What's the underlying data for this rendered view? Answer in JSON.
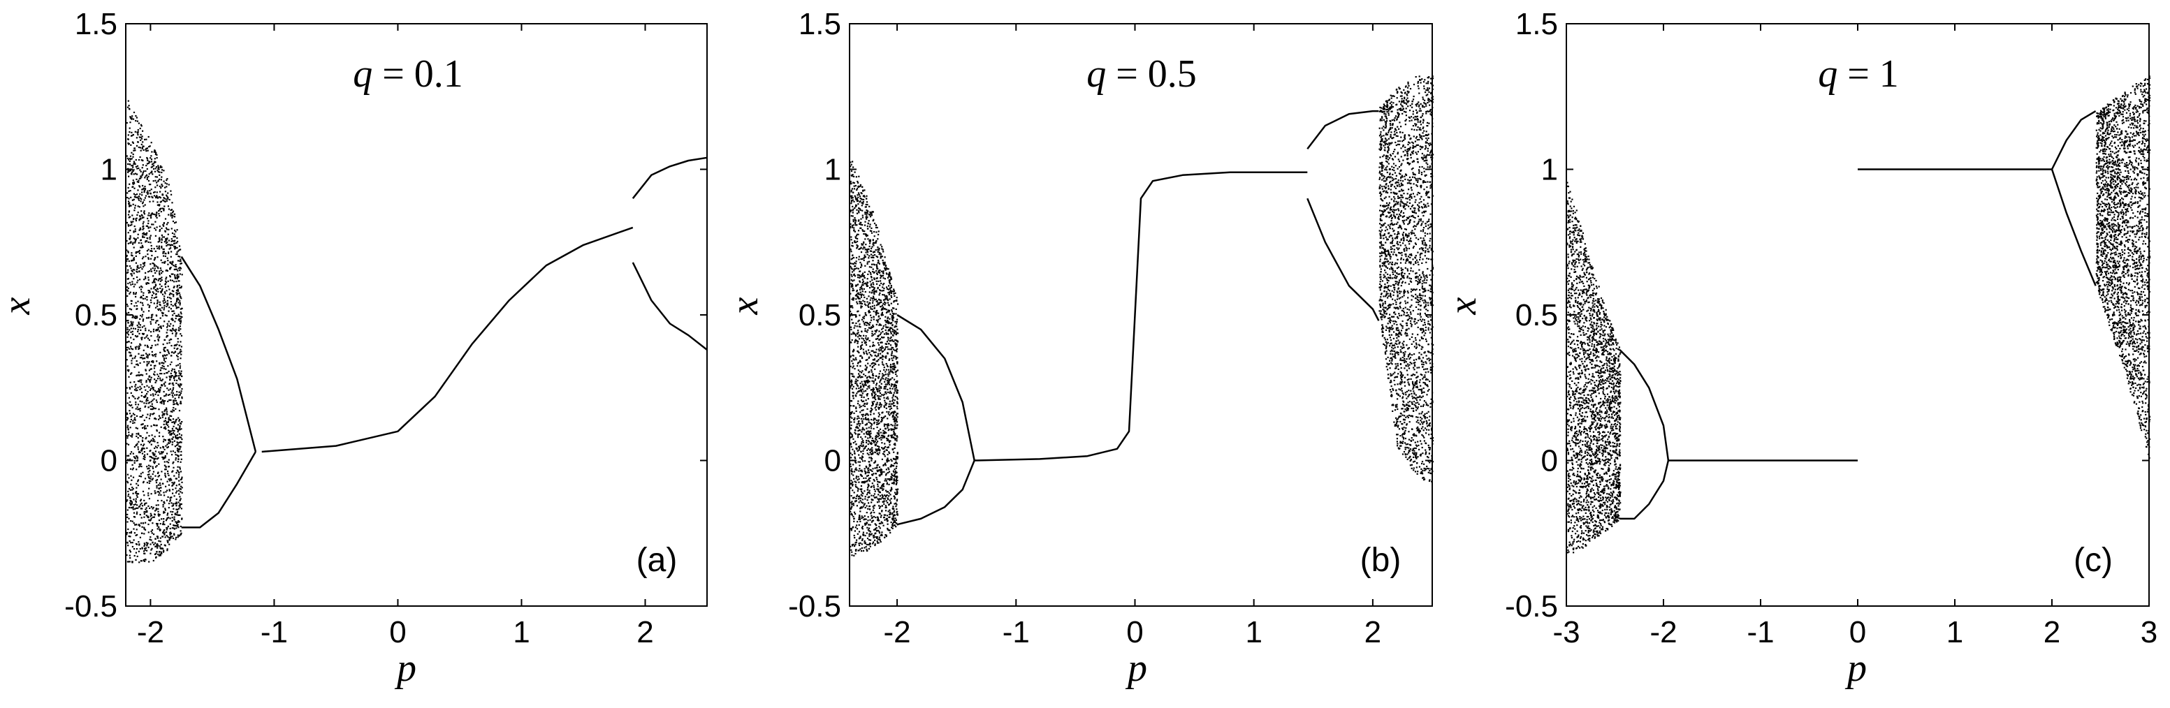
{
  "figure": {
    "panels": [
      {
        "id": "a",
        "label": "(a)",
        "annotation_var": "q",
        "annotation_eq": " = 0.1",
        "xlabel": "p",
        "ylabel": "x"
      },
      {
        "id": "b",
        "label": "(b)",
        "annotation_var": "q",
        "annotation_eq": " = 0.5",
        "xlabel": "p",
        "ylabel": "x"
      },
      {
        "id": "c",
        "label": "(c)",
        "annotation_var": "q",
        "annotation_eq": " = 1",
        "xlabel": "p",
        "ylabel": "x"
      }
    ]
  },
  "chart_data": [
    {
      "type": "scatter",
      "title": "",
      "annotation": "q = 0.1",
      "panel_label": "(a)",
      "xlabel": "p",
      "ylabel": "x",
      "xlim": [
        -2.2,
        2.5
      ],
      "ylim": [
        -0.5,
        1.5
      ],
      "xticks": [
        -2,
        -1,
        0,
        1,
        2
      ],
      "xtick_labels": [
        "-2",
        "-1",
        "0",
        "1",
        "2"
      ],
      "yticks": [
        -0.5,
        0,
        0.5,
        1,
        1.5
      ],
      "ytick_labels": [
        "-0.5",
        "0",
        "0.5",
        "1",
        "1.5"
      ],
      "grid": false,
      "color": "#000000",
      "series": [
        {
          "kind": "chaotic_band",
          "x_range": [
            -2.2,
            -1.75
          ],
          "x": [
            -2.2,
            -2.0,
            -1.85,
            -1.75
          ],
          "y_min": [
            -0.35,
            -0.35,
            -0.3,
            -0.25
          ],
          "y_max": [
            1.25,
            1.1,
            0.95,
            0.7
          ]
        },
        {
          "kind": "curve",
          "x": [
            -1.75,
            -1.6,
            -1.45,
            -1.3,
            -1.15
          ],
          "y": [
            0.7,
            0.6,
            0.45,
            0.28,
            0.03
          ]
        },
        {
          "kind": "curve",
          "x": [
            -1.75,
            -1.6,
            -1.45,
            -1.3,
            -1.15
          ],
          "y": [
            -0.23,
            -0.23,
            -0.18,
            -0.08,
            0.03
          ]
        },
        {
          "kind": "curve",
          "x": [
            -1.1,
            -0.5,
            0.0,
            0.3,
            0.6,
            0.9,
            1.2,
            1.5,
            1.9
          ],
          "y": [
            0.03,
            0.05,
            0.1,
            0.22,
            0.4,
            0.55,
            0.67,
            0.74,
            0.8
          ]
        },
        {
          "kind": "curve",
          "x": [
            1.9,
            2.05,
            2.2,
            2.35,
            2.5
          ],
          "y": [
            0.9,
            0.98,
            1.01,
            1.03,
            1.04
          ]
        },
        {
          "kind": "curve",
          "x": [
            1.9,
            2.05,
            2.2,
            2.35,
            2.5
          ],
          "y": [
            0.68,
            0.55,
            0.47,
            0.43,
            0.38
          ]
        }
      ]
    },
    {
      "type": "scatter",
      "title": "",
      "annotation": "q = 0.5",
      "panel_label": "(b)",
      "xlabel": "p",
      "ylabel": "x",
      "xlim": [
        -2.4,
        2.5
      ],
      "ylim": [
        -0.5,
        1.5
      ],
      "xticks": [
        -2,
        -1,
        0,
        1,
        2
      ],
      "xtick_labels": [
        "-2",
        "-1",
        "0",
        "1",
        "2"
      ],
      "yticks": [
        -0.5,
        0,
        0.5,
        1,
        1.5
      ],
      "ytick_labels": [
        "-0.5",
        "0",
        "0.5",
        "1",
        "1.5"
      ],
      "grid": false,
      "color": "#000000",
      "series": [
        {
          "kind": "chaotic_band",
          "x_range": [
            -2.4,
            -2.0
          ],
          "x": [
            -2.4,
            -2.2,
            -2.0
          ],
          "y_min": [
            -0.33,
            -0.3,
            -0.22
          ],
          "y_max": [
            1.05,
            0.85,
            0.55
          ]
        },
        {
          "kind": "curve",
          "x": [
            -2.0,
            -1.8,
            -1.6,
            -1.45,
            -1.35
          ],
          "y": [
            0.5,
            0.45,
            0.35,
            0.2,
            0.0
          ]
        },
        {
          "kind": "curve",
          "x": [
            -2.0,
            -1.8,
            -1.6,
            -1.45,
            -1.35
          ],
          "y": [
            -0.22,
            -0.2,
            -0.16,
            -0.1,
            0.0
          ]
        },
        {
          "kind": "curve",
          "x": [
            -1.35,
            -0.8,
            -0.4,
            -0.15,
            -0.05,
            0.0,
            0.05,
            0.15,
            0.4,
            0.8,
            1.45
          ],
          "y": [
            0.0,
            0.005,
            0.015,
            0.04,
            0.1,
            0.5,
            0.9,
            0.96,
            0.98,
            0.99,
            0.99
          ]
        },
        {
          "kind": "curve",
          "x": [
            1.45,
            1.6,
            1.8,
            2.0,
            2.05
          ],
          "y": [
            1.07,
            1.15,
            1.19,
            1.2,
            1.2
          ]
        },
        {
          "kind": "curve",
          "x": [
            1.45,
            1.6,
            1.8,
            2.0,
            2.05
          ],
          "y": [
            0.9,
            0.75,
            0.6,
            0.52,
            0.48
          ]
        },
        {
          "kind": "chaotic_band",
          "x_range": [
            2.05,
            2.5
          ],
          "x": [
            2.05,
            2.2,
            2.35,
            2.5
          ],
          "y_min": [
            0.5,
            0.05,
            -0.05,
            -0.08
          ],
          "y_max": [
            1.22,
            1.28,
            1.32,
            1.33
          ]
        }
      ]
    },
    {
      "type": "scatter",
      "title": "",
      "annotation": "q = 1",
      "panel_label": "(c)",
      "xlabel": "p",
      "ylabel": "x",
      "xlim": [
        -3,
        3
      ],
      "ylim": [
        -0.5,
        1.5
      ],
      "xticks": [
        -3,
        -2,
        -1,
        0,
        1,
        2,
        3
      ],
      "xtick_labels": [
        "-3",
        "-2",
        "-1",
        "0",
        "1",
        "2",
        "3"
      ],
      "yticks": [
        -0.5,
        0,
        0.5,
        1,
        1.5
      ],
      "ytick_labels": [
        "-0.5",
        "0",
        "0.5",
        "1",
        "1.5"
      ],
      "grid": false,
      "color": "#000000",
      "series": [
        {
          "kind": "chaotic_band",
          "x_range": [
            -3,
            -2.45
          ],
          "x": [
            -3.0,
            -2.75,
            -2.45
          ],
          "y_min": [
            -0.33,
            -0.28,
            -0.2
          ],
          "y_max": [
            0.98,
            0.68,
            0.38
          ]
        },
        {
          "kind": "curve",
          "x": [
            -2.45,
            -2.3,
            -2.15,
            -2.0,
            -1.95
          ],
          "y": [
            0.38,
            0.33,
            0.25,
            0.12,
            0.0
          ]
        },
        {
          "kind": "curve",
          "x": [
            -2.45,
            -2.3,
            -2.15,
            -2.0,
            -1.95
          ],
          "y": [
            -0.2,
            -0.2,
            -0.15,
            -0.07,
            0.0
          ]
        },
        {
          "kind": "curve",
          "x": [
            -1.95,
            0.0
          ],
          "y": [
            0.0,
            0.0
          ]
        },
        {
          "kind": "curve",
          "x": [
            0.0,
            2.0
          ],
          "y": [
            1.0,
            1.0
          ]
        },
        {
          "kind": "curve",
          "x": [
            2.0,
            2.15,
            2.3,
            2.45
          ],
          "y": [
            1.0,
            1.1,
            1.17,
            1.2
          ]
        },
        {
          "kind": "curve",
          "x": [
            2.0,
            2.15,
            2.3,
            2.45
          ],
          "y": [
            1.0,
            0.85,
            0.72,
            0.6
          ]
        },
        {
          "kind": "chaotic_band",
          "x_range": [
            2.45,
            3.0
          ],
          "x": [
            2.45,
            2.75,
            3.0
          ],
          "y_min": [
            0.6,
            0.3,
            0.0
          ],
          "y_max": [
            1.2,
            1.27,
            1.33
          ]
        }
      ]
    }
  ]
}
